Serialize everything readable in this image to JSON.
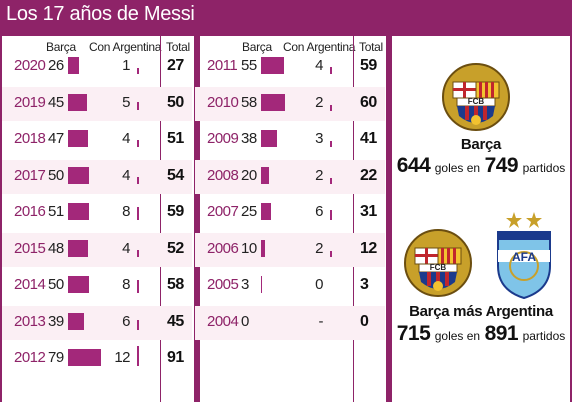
{
  "title": "Los 17 años de Messi",
  "headers": {
    "barca": "Barça",
    "argentina": "Con Argentina",
    "total": "Total"
  },
  "colors": {
    "accent": "#8e2368",
    "bar": "#a3287a",
    "row_bg": "#fbeff4"
  },
  "chart_data": {
    "type": "bar",
    "barca_scale_max": 79,
    "argentina_scale_max": 12,
    "columns": [
      {
        "rows": [
          {
            "year": "2020",
            "barca": "26",
            "argentina": "1",
            "total": "27"
          },
          {
            "year": "2019",
            "barca": "45",
            "argentina": "5",
            "total": "50"
          },
          {
            "year": "2018",
            "barca": "47",
            "argentina": "4",
            "total": "51"
          },
          {
            "year": "2017",
            "barca": "50",
            "argentina": "4",
            "total": "54"
          },
          {
            "year": "2016",
            "barca": "51",
            "argentina": "8",
            "total": "59"
          },
          {
            "year": "2015",
            "barca": "48",
            "argentina": "4",
            "total": "52"
          },
          {
            "year": "2014",
            "barca": "50",
            "argentina": "8",
            "total": "58"
          },
          {
            "year": "2013",
            "barca": "39",
            "argentina": "6",
            "total": "45"
          },
          {
            "year": "2012",
            "barca": "79",
            "argentina": "12",
            "total": "91"
          }
        ]
      },
      {
        "rows": [
          {
            "year": "2011",
            "barca": "55",
            "argentina": "4",
            "total": "59"
          },
          {
            "year": "2010",
            "barca": "58",
            "argentina": "2",
            "total": "60"
          },
          {
            "year": "2009",
            "barca": "38",
            "argentina": "3",
            "total": "41"
          },
          {
            "year": "2008",
            "barca": "20",
            "argentina": "2",
            "total": "22"
          },
          {
            "year": "2007",
            "barca": "25",
            "argentina": "6",
            "total": "31"
          },
          {
            "year": "2006",
            "barca": "10",
            "argentina": "2",
            "total": "12"
          },
          {
            "year": "2005",
            "barca": "3",
            "argentina": "0",
            "total": "3"
          },
          {
            "year": "2004",
            "barca": "0",
            "argentina": "-",
            "total": "0"
          }
        ]
      }
    ]
  },
  "summary": {
    "barca": {
      "label": "Barça",
      "goals": "644",
      "goals_word": "goles en",
      "matches": "749",
      "matches_word": "partidos",
      "logo_text": "FCB"
    },
    "combined": {
      "label": "Barça más Argentina",
      "goals": "715",
      "goals_word": "goles en",
      "matches": "891",
      "matches_word": "partidos",
      "logo_text": "FCB",
      "afa_text": "AFA"
    }
  }
}
